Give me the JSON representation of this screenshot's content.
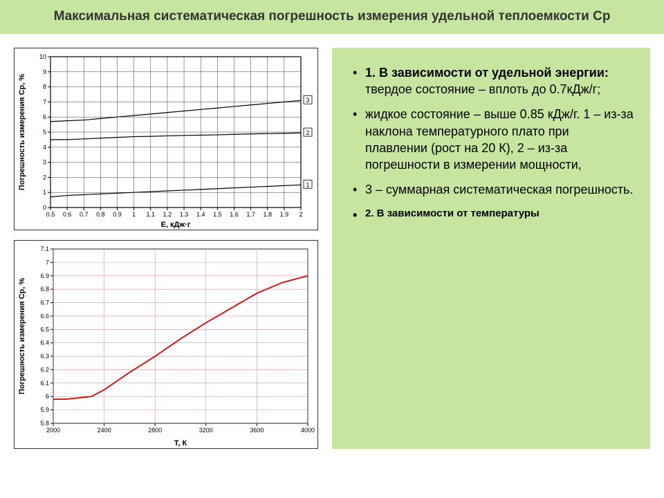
{
  "title": "Максимальная систематическая погрешность измерения удельной теплоемкости Ср",
  "chart1": {
    "type": "line",
    "xlabel": "Е, кДж·г",
    "ylabel": "Погрешность измерения Cp, %",
    "xlim": [
      0.5,
      2.0
    ],
    "ylim": [
      0,
      10
    ],
    "xticks": [
      0.5,
      0.6,
      0.7,
      0.8,
      0.9,
      1.0,
      1.1,
      1.2,
      1.3,
      1.4,
      1.5,
      1.6,
      1.7,
      1.8,
      1.9,
      2.0
    ],
    "yticks": [
      0,
      1,
      2,
      3,
      4,
      5,
      6,
      7,
      8,
      9,
      10
    ],
    "grid_color": "#000000",
    "background_color": "#ffffff",
    "series": [
      {
        "label": "1",
        "color": "#000000",
        "x": [
          0.5,
          0.6,
          0.7,
          0.8,
          0.9,
          1.0,
          1.1,
          1.2,
          1.3,
          1.4,
          1.5,
          1.6,
          1.7,
          1.8,
          1.9,
          2.0
        ],
        "y": [
          0.7,
          0.8,
          0.85,
          0.9,
          0.95,
          1.0,
          1.05,
          1.1,
          1.15,
          1.2,
          1.25,
          1.3,
          1.35,
          1.4,
          1.45,
          1.5
        ]
      },
      {
        "label": "2",
        "color": "#000000",
        "x": [
          0.5,
          0.6,
          0.7,
          0.8,
          0.9,
          1.0,
          1.1,
          1.2,
          1.3,
          1.4,
          1.5,
          1.6,
          1.7,
          1.8,
          1.9,
          2.0
        ],
        "y": [
          4.5,
          4.5,
          4.55,
          4.6,
          4.65,
          4.7,
          4.72,
          4.75,
          4.78,
          4.8,
          4.82,
          4.85,
          4.88,
          4.9,
          4.92,
          4.95
        ]
      },
      {
        "label": "3",
        "color": "#000000",
        "x": [
          0.5,
          0.6,
          0.7,
          0.8,
          0.9,
          1.0,
          1.1,
          1.2,
          1.3,
          1.4,
          1.5,
          1.6,
          1.7,
          1.8,
          1.9,
          2.0
        ],
        "y": [
          5.7,
          5.75,
          5.8,
          5.9,
          6.0,
          6.1,
          6.2,
          6.3,
          6.4,
          6.5,
          6.6,
          6.7,
          6.8,
          6.9,
          7.0,
          7.1
        ]
      }
    ],
    "series_markers": [
      {
        "label": "1",
        "x": 2.0,
        "y": 1.5
      },
      {
        "label": "2",
        "x": 2.0,
        "y": 4.95
      },
      {
        "label": "3",
        "x": 2.0,
        "y": 7.1
      }
    ]
  },
  "chart2": {
    "type": "line",
    "xlabel": "Т, К",
    "ylabel": "Погрешность измерения Cp, %",
    "xlim": [
      2000,
      4000
    ],
    "ylim": [
      5.8,
      7.1
    ],
    "xticks": [
      2000,
      2400,
      2800,
      3200,
      3600,
      4000
    ],
    "yticks": [
      5.8,
      5.9,
      6.0,
      6.1,
      6.2,
      6.3,
      6.4,
      6.5,
      6.6,
      6.7,
      6.8,
      6.9,
      7.0,
      7.1
    ],
    "grid_color": "#cc7070",
    "background_color": "#ffffff",
    "series": [
      {
        "color": "#e00000",
        "x": [
          2000,
          2100,
          2200,
          2300,
          2400,
          2600,
          2800,
          3000,
          3200,
          3400,
          3600,
          3800,
          4000
        ],
        "y": [
          5.98,
          5.98,
          5.99,
          6.0,
          6.05,
          6.18,
          6.3,
          6.43,
          6.55,
          6.66,
          6.77,
          6.85,
          6.9
        ]
      }
    ]
  },
  "bullets": {
    "b1_bold": "1. В зависимости от удельной энергии:",
    "b1_rest": " твердое состояние – вплоть до 0.7кДж/г;",
    "b2": "жидкое состояние – выше 0.85 кДж/г.  1 – из-за наклона температурного плато при плавлении (рост на 20 К), 2 – из-за погрешности в измерении мощности,",
    "b3": "3 – суммарная систематическая погрешность.",
    "b4": "2. В зависимости от температуры"
  }
}
